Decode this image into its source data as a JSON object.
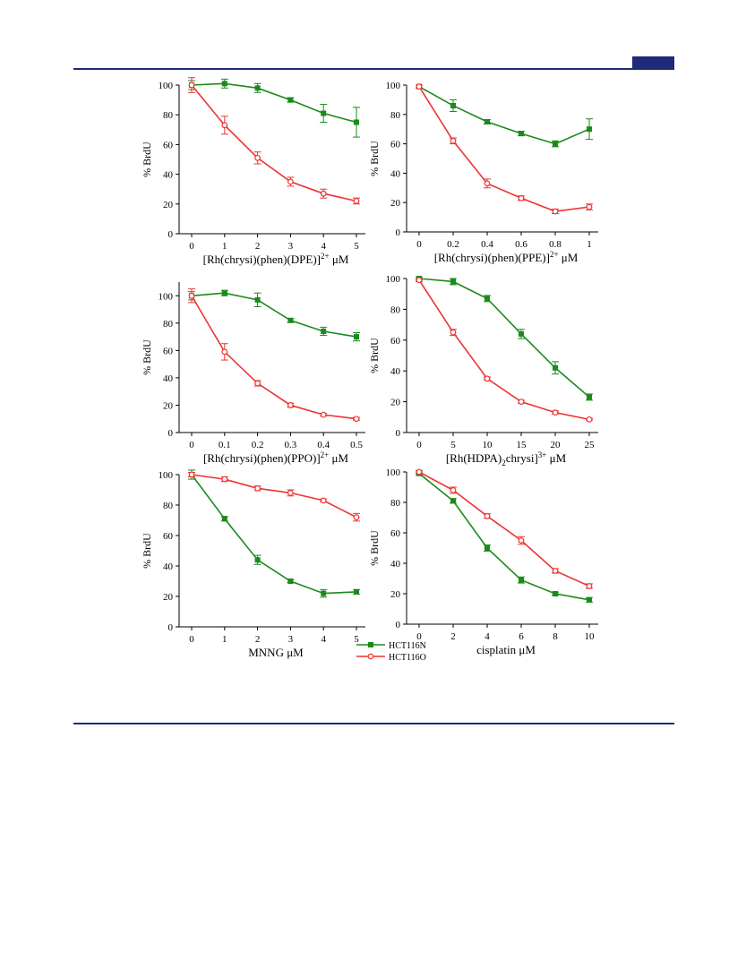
{
  "page": {
    "colors": {
      "rule": "#1f2a78",
      "green": "#1a8a1a",
      "red": "#ee3333"
    }
  },
  "legend": {
    "entries": [
      {
        "label": "HCT116N",
        "color": "#1a8a1a",
        "marker": "filled-square"
      },
      {
        "label": "HCT116O",
        "color": "#ee3333",
        "marker": "open-circle"
      }
    ]
  },
  "chart_data": [
    {
      "type": "line",
      "xlabel": "[Rh(chrysi)(phen)(DPE)]2+ μM",
      "xlabel_parts": {
        "pre": "[Rh(chrysi)(phen)(DPE)]",
        "sup": "2+",
        "post": " μM"
      },
      "ylabel": "% BrdU",
      "x": [
        0,
        1,
        2,
        3,
        4,
        5
      ],
      "xticks": [
        "0",
        "1",
        "2",
        "3",
        "4",
        "5"
      ],
      "yticks": [
        "0",
        "20",
        "40",
        "60",
        "80",
        "100"
      ],
      "xlim": [
        0,
        5
      ],
      "ylim": [
        0,
        100
      ],
      "grid": false,
      "series": [
        {
          "name": "HCT116N",
          "values": [
            100,
            101,
            98,
            90,
            81,
            75
          ],
          "errors": [
            3,
            3,
            3,
            1.5,
            6,
            10
          ]
        },
        {
          "name": "HCT116O",
          "values": [
            100,
            73,
            51,
            35,
            27,
            22
          ],
          "errors": [
            5,
            6,
            4,
            3,
            3,
            2
          ]
        }
      ]
    },
    {
      "type": "line",
      "xlabel": "[Rh(chrysi)(phen)(PPE)]2+ μM",
      "xlabel_parts": {
        "pre": "[Rh(chrysi)(phen)(PPE)]",
        "sup": "2+",
        "post": " μM"
      },
      "ylabel": "% BrdU",
      "x": [
        0,
        0.2,
        0.4,
        0.6,
        0.8,
        1
      ],
      "xticks": [
        "0",
        "0.2",
        "0.4",
        "0.6",
        "0.8",
        "1"
      ],
      "yticks": [
        "0",
        "20",
        "40",
        "60",
        "80",
        "100"
      ],
      "xlim": [
        0,
        1
      ],
      "ylim": [
        0,
        100
      ],
      "grid": false,
      "series": [
        {
          "name": "HCT116N",
          "values": [
            99,
            86,
            75,
            67,
            60,
            70
          ],
          "errors": [
            1,
            4,
            1.5,
            1.5,
            2,
            7
          ]
        },
        {
          "name": "HCT116O",
          "values": [
            99,
            62,
            33,
            23,
            14,
            17
          ],
          "errors": [
            1,
            2,
            3,
            1.5,
            1.5,
            2
          ]
        }
      ]
    },
    {
      "type": "line",
      "xlabel": "[Rh(chrysi)(phen)(PPO)]2+ μM",
      "xlabel_parts": {
        "pre": "[Rh(chrysi)(phen)(PPO)]",
        "sup": "2+",
        "post": " μM"
      },
      "ylabel": "% BrdU",
      "x": [
        0,
        0.1,
        0.2,
        0.3,
        0.4,
        0.5
      ],
      "xticks": [
        "0",
        "0.1",
        "0.2",
        "0.3",
        "0.4",
        "0.5"
      ],
      "yticks": [
        "0",
        "20",
        "40",
        "60",
        "80",
        "100"
      ],
      "xlim": [
        0,
        0.5
      ],
      "ylim": [
        0,
        110
      ],
      "grid": false,
      "series": [
        {
          "name": "HCT116N",
          "values": [
            100,
            102,
            97,
            82,
            74,
            70
          ],
          "errors": [
            3,
            2,
            5,
            1.5,
            3,
            3
          ]
        },
        {
          "name": "HCT116O",
          "values": [
            100,
            59,
            36,
            20,
            13,
            10
          ],
          "errors": [
            5,
            6,
            2,
            1.5,
            1,
            1
          ]
        }
      ]
    },
    {
      "type": "line",
      "xlabel": "[Rh(HDPA)2chrysi]3+ μM",
      "xlabel_parts": {
        "pre": "[Rh(HDPA)",
        "sub": "2",
        "mid": "chrysi]",
        "sup": "3+",
        "post": " μM"
      },
      "ylabel": "% BrdU",
      "x": [
        0,
        5,
        10,
        15,
        20,
        25
      ],
      "xticks": [
        "0",
        "5",
        "10",
        "15",
        "20",
        "25"
      ],
      "yticks": [
        "0",
        "20",
        "40",
        "60",
        "80",
        "100"
      ],
      "xlim": [
        0,
        25
      ],
      "ylim": [
        0,
        100
      ],
      "grid": false,
      "series": [
        {
          "name": "HCT116N",
          "values": [
            100,
            98,
            87,
            64,
            42,
            23
          ],
          "errors": [
            1,
            2,
            2,
            3,
            4,
            2
          ]
        },
        {
          "name": "HCT116O",
          "values": [
            99,
            65,
            35,
            20,
            13,
            8.5
          ],
          "errors": [
            1,
            2,
            1,
            1,
            1,
            0.5
          ]
        }
      ]
    },
    {
      "type": "line",
      "xlabel": "MNNG μM",
      "xlabel_parts": {
        "pre": "MNNG μM"
      },
      "ylabel": "% BrdU",
      "x": [
        0,
        1,
        2,
        3,
        4,
        5
      ],
      "xticks": [
        "0",
        "1",
        "2",
        "3",
        "4",
        "5"
      ],
      "yticks": [
        "0",
        "20",
        "40",
        "60",
        "80",
        "100"
      ],
      "xlim": [
        0,
        5
      ],
      "ylim": [
        0,
        100
      ],
      "grid": false,
      "series": [
        {
          "name": "HCT116N",
          "values": [
            100,
            71,
            44,
            30,
            22,
            23
          ],
          "errors": [
            3,
            1.5,
            3,
            1,
            2.5,
            1.5
          ]
        },
        {
          "name": "HCT116O",
          "values": [
            100,
            97,
            91,
            88,
            83,
            72
          ],
          "errors": [
            1.5,
            1.5,
            1.5,
            2,
            1,
            2.5
          ]
        }
      ]
    },
    {
      "type": "line",
      "xlabel": "cisplatin μM",
      "xlabel_parts": {
        "pre": "cisplatin μM"
      },
      "ylabel": "% BrdU",
      "x": [
        0,
        2,
        4,
        6,
        8,
        10
      ],
      "xticks": [
        "0",
        "2",
        "4",
        "6",
        "8",
        "10"
      ],
      "yticks": [
        "0",
        "20",
        "40",
        "60",
        "80",
        "100"
      ],
      "xlim": [
        0,
        10
      ],
      "ylim": [
        0,
        100
      ],
      "grid": false,
      "series": [
        {
          "name": "HCT116N",
          "values": [
            99,
            81,
            50,
            29,
            20,
            16
          ],
          "errors": [
            1,
            1.5,
            2,
            2,
            1,
            1.5
          ]
        },
        {
          "name": "HCT116O",
          "values": [
            100,
            88,
            71,
            55,
            35,
            25
          ],
          "errors": [
            1,
            2,
            1.5,
            2.5,
            1.5,
            1.5
          ]
        }
      ]
    }
  ]
}
